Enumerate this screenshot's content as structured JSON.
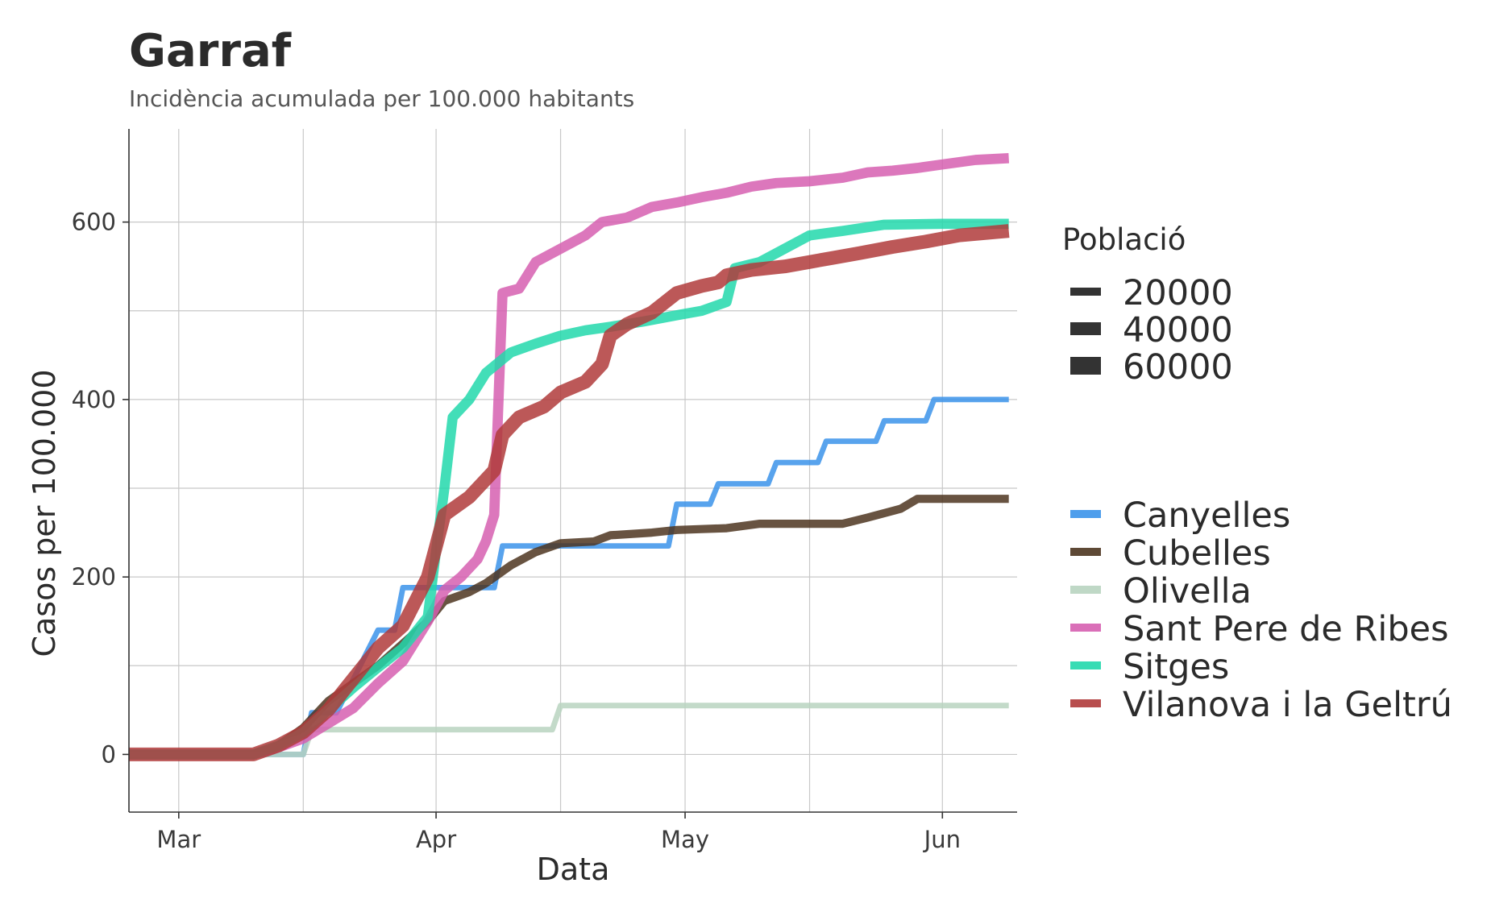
{
  "chart_data": {
    "type": "line",
    "title": "Garraf",
    "subtitle": "Incidència acumulada per 100.000 habitants",
    "xlabel": "Data",
    "ylabel": "Casos per 100.000",
    "x_range": [
      "2020-02-24",
      "2020-06-10"
    ],
    "ylim": [
      -65,
      705
    ],
    "x_ticks": [
      {
        "date": "2020-03-01",
        "label": "Mar"
      },
      {
        "date": "2020-04-01",
        "label": "Apr"
      },
      {
        "date": "2020-05-01",
        "label": "May"
      },
      {
        "date": "2020-06-01",
        "label": "Jun"
      }
    ],
    "x_minor_ticks": [
      "2020-03-16",
      "2020-04-16",
      "2020-05-16"
    ],
    "y_ticks": [
      0,
      200,
      400,
      600
    ],
    "y_minor_ticks": [
      100,
      300,
      500
    ],
    "grid": true,
    "legend_position": "right",
    "size_legend": {
      "title": "Població",
      "entries": [
        {
          "label": "20000",
          "value": 20000
        },
        {
          "label": "40000",
          "value": 40000
        },
        {
          "label": "60000",
          "value": 60000
        }
      ]
    },
    "series": [
      {
        "name": "Canyelles",
        "color": "#3b93ea",
        "population": 3200,
        "step": true,
        "points": [
          [
            "2020-02-24",
            0
          ],
          [
            "2020-03-16",
            0
          ],
          [
            "2020-03-17",
            47
          ],
          [
            "2020-03-20",
            47
          ],
          [
            "2020-03-25",
            140
          ],
          [
            "2020-03-27",
            140
          ],
          [
            "2020-03-28",
            188
          ],
          [
            "2020-04-08",
            188
          ],
          [
            "2020-04-09",
            235
          ],
          [
            "2020-04-29",
            235
          ],
          [
            "2020-04-30",
            282
          ],
          [
            "2020-05-04",
            282
          ],
          [
            "2020-05-05",
            305
          ],
          [
            "2020-05-11",
            305
          ],
          [
            "2020-05-12",
            329
          ],
          [
            "2020-05-17",
            329
          ],
          [
            "2020-05-18",
            353
          ],
          [
            "2020-05-24",
            353
          ],
          [
            "2020-05-25",
            376
          ],
          [
            "2020-05-30",
            376
          ],
          [
            "2020-05-31",
            400
          ],
          [
            "2020-06-09",
            400
          ]
        ]
      },
      {
        "name": "Cubelles",
        "color": "#4d3520",
        "population": 15000,
        "step": false,
        "points": [
          [
            "2020-02-24",
            0
          ],
          [
            "2020-03-10",
            0
          ],
          [
            "2020-03-13",
            10
          ],
          [
            "2020-03-16",
            30
          ],
          [
            "2020-03-19",
            60
          ],
          [
            "2020-03-22",
            80
          ],
          [
            "2020-03-25",
            100
          ],
          [
            "2020-03-28",
            125
          ],
          [
            "2020-03-31",
            150
          ],
          [
            "2020-04-02",
            173
          ],
          [
            "2020-04-05",
            183
          ],
          [
            "2020-04-07",
            193
          ],
          [
            "2020-04-10",
            213
          ],
          [
            "2020-04-13",
            228
          ],
          [
            "2020-04-16",
            238
          ],
          [
            "2020-04-20",
            240
          ],
          [
            "2020-04-22",
            247
          ],
          [
            "2020-04-27",
            250
          ],
          [
            "2020-04-30",
            253
          ],
          [
            "2020-05-03",
            254
          ],
          [
            "2020-05-06",
            255
          ],
          [
            "2020-05-10",
            260
          ],
          [
            "2020-05-15",
            260
          ],
          [
            "2020-05-20",
            260
          ],
          [
            "2020-05-23",
            267
          ],
          [
            "2020-05-25",
            272
          ],
          [
            "2020-05-27",
            277
          ],
          [
            "2020-05-29",
            288
          ],
          [
            "2020-06-03",
            288
          ],
          [
            "2020-06-09",
            288
          ]
        ]
      },
      {
        "name": "Olivella",
        "color": "#b8d4c0",
        "population": 3600,
        "step": true,
        "points": [
          [
            "2020-02-24",
            0
          ],
          [
            "2020-03-16",
            0
          ],
          [
            "2020-03-17",
            28
          ],
          [
            "2020-04-15",
            28
          ],
          [
            "2020-04-16",
            55
          ],
          [
            "2020-06-09",
            55
          ]
        ]
      },
      {
        "name": "Sant Pere de Ribes",
        "color": "#d65fb0",
        "population": 30000,
        "step": false,
        "points": [
          [
            "2020-02-24",
            0
          ],
          [
            "2020-03-10",
            0
          ],
          [
            "2020-03-13",
            8
          ],
          [
            "2020-03-16",
            18
          ],
          [
            "2020-03-19",
            35
          ],
          [
            "2020-03-22",
            52
          ],
          [
            "2020-03-25",
            80
          ],
          [
            "2020-03-28",
            105
          ],
          [
            "2020-03-31",
            150
          ],
          [
            "2020-04-02",
            185
          ],
          [
            "2020-04-04",
            200
          ],
          [
            "2020-04-06",
            220
          ],
          [
            "2020-04-07",
            240
          ],
          [
            "2020-04-08",
            270
          ],
          [
            "2020-04-09",
            520
          ],
          [
            "2020-04-11",
            525
          ],
          [
            "2020-04-13",
            555
          ],
          [
            "2020-04-16",
            570
          ],
          [
            "2020-04-19",
            585
          ],
          [
            "2020-04-21",
            600
          ],
          [
            "2020-04-24",
            605
          ],
          [
            "2020-04-27",
            617
          ],
          [
            "2020-04-30",
            622
          ],
          [
            "2020-05-03",
            628
          ],
          [
            "2020-05-06",
            633
          ],
          [
            "2020-05-09",
            640
          ],
          [
            "2020-05-12",
            644
          ],
          [
            "2020-05-16",
            646
          ],
          [
            "2020-05-20",
            650
          ],
          [
            "2020-05-23",
            656
          ],
          [
            "2020-05-26",
            658
          ],
          [
            "2020-05-29",
            661
          ],
          [
            "2020-06-01",
            665
          ],
          [
            "2020-06-05",
            670
          ],
          [
            "2020-06-09",
            672
          ]
        ]
      },
      {
        "name": "Sitges",
        "color": "#22d8ac",
        "population": 29000,
        "step": false,
        "points": [
          [
            "2020-02-24",
            0
          ],
          [
            "2020-03-10",
            0
          ],
          [
            "2020-03-13",
            10
          ],
          [
            "2020-03-16",
            25
          ],
          [
            "2020-03-19",
            50
          ],
          [
            "2020-03-22",
            75
          ],
          [
            "2020-03-25",
            98
          ],
          [
            "2020-03-28",
            120
          ],
          [
            "2020-03-31",
            155
          ],
          [
            "2020-04-01",
            230
          ],
          [
            "2020-04-02",
            300
          ],
          [
            "2020-04-03",
            380
          ],
          [
            "2020-04-05",
            400
          ],
          [
            "2020-04-07",
            430
          ],
          [
            "2020-04-10",
            453
          ],
          [
            "2020-04-13",
            463
          ],
          [
            "2020-04-16",
            472
          ],
          [
            "2020-04-19",
            478
          ],
          [
            "2020-04-22",
            482
          ],
          [
            "2020-04-26",
            488
          ],
          [
            "2020-04-30",
            495
          ],
          [
            "2020-05-03",
            500
          ],
          [
            "2020-05-06",
            510
          ],
          [
            "2020-05-07",
            548
          ],
          [
            "2020-05-10",
            555
          ],
          [
            "2020-05-13",
            570
          ],
          [
            "2020-05-16",
            585
          ],
          [
            "2020-05-20",
            590
          ],
          [
            "2020-05-25",
            597
          ],
          [
            "2020-06-01",
            598
          ],
          [
            "2020-06-09",
            598
          ]
        ]
      },
      {
        "name": "Vilanova i la Geltrú",
        "color": "#b03b3b",
        "population": 67000,
        "step": false,
        "points": [
          [
            "2020-02-24",
            0
          ],
          [
            "2020-03-10",
            0
          ],
          [
            "2020-03-13",
            10
          ],
          [
            "2020-03-16",
            25
          ],
          [
            "2020-03-19",
            50
          ],
          [
            "2020-03-22",
            85
          ],
          [
            "2020-03-25",
            120
          ],
          [
            "2020-03-28",
            145
          ],
          [
            "2020-03-31",
            200
          ],
          [
            "2020-04-02",
            270
          ],
          [
            "2020-04-05",
            290
          ],
          [
            "2020-04-08",
            320
          ],
          [
            "2020-04-09",
            360
          ],
          [
            "2020-04-11",
            380
          ],
          [
            "2020-04-14",
            392
          ],
          [
            "2020-04-16",
            408
          ],
          [
            "2020-04-19",
            420
          ],
          [
            "2020-04-21",
            440
          ],
          [
            "2020-04-22",
            472
          ],
          [
            "2020-04-24",
            485
          ],
          [
            "2020-04-27",
            498
          ],
          [
            "2020-04-30",
            520
          ],
          [
            "2020-05-03",
            528
          ],
          [
            "2020-05-05",
            532
          ],
          [
            "2020-05-06",
            540
          ],
          [
            "2020-05-09",
            546
          ],
          [
            "2020-05-13",
            550
          ],
          [
            "2020-05-16",
            555
          ],
          [
            "2020-05-19",
            560
          ],
          [
            "2020-05-22",
            565
          ],
          [
            "2020-05-26",
            572
          ],
          [
            "2020-05-30",
            578
          ],
          [
            "2020-06-03",
            585
          ],
          [
            "2020-06-09",
            590
          ]
        ]
      }
    ]
  }
}
